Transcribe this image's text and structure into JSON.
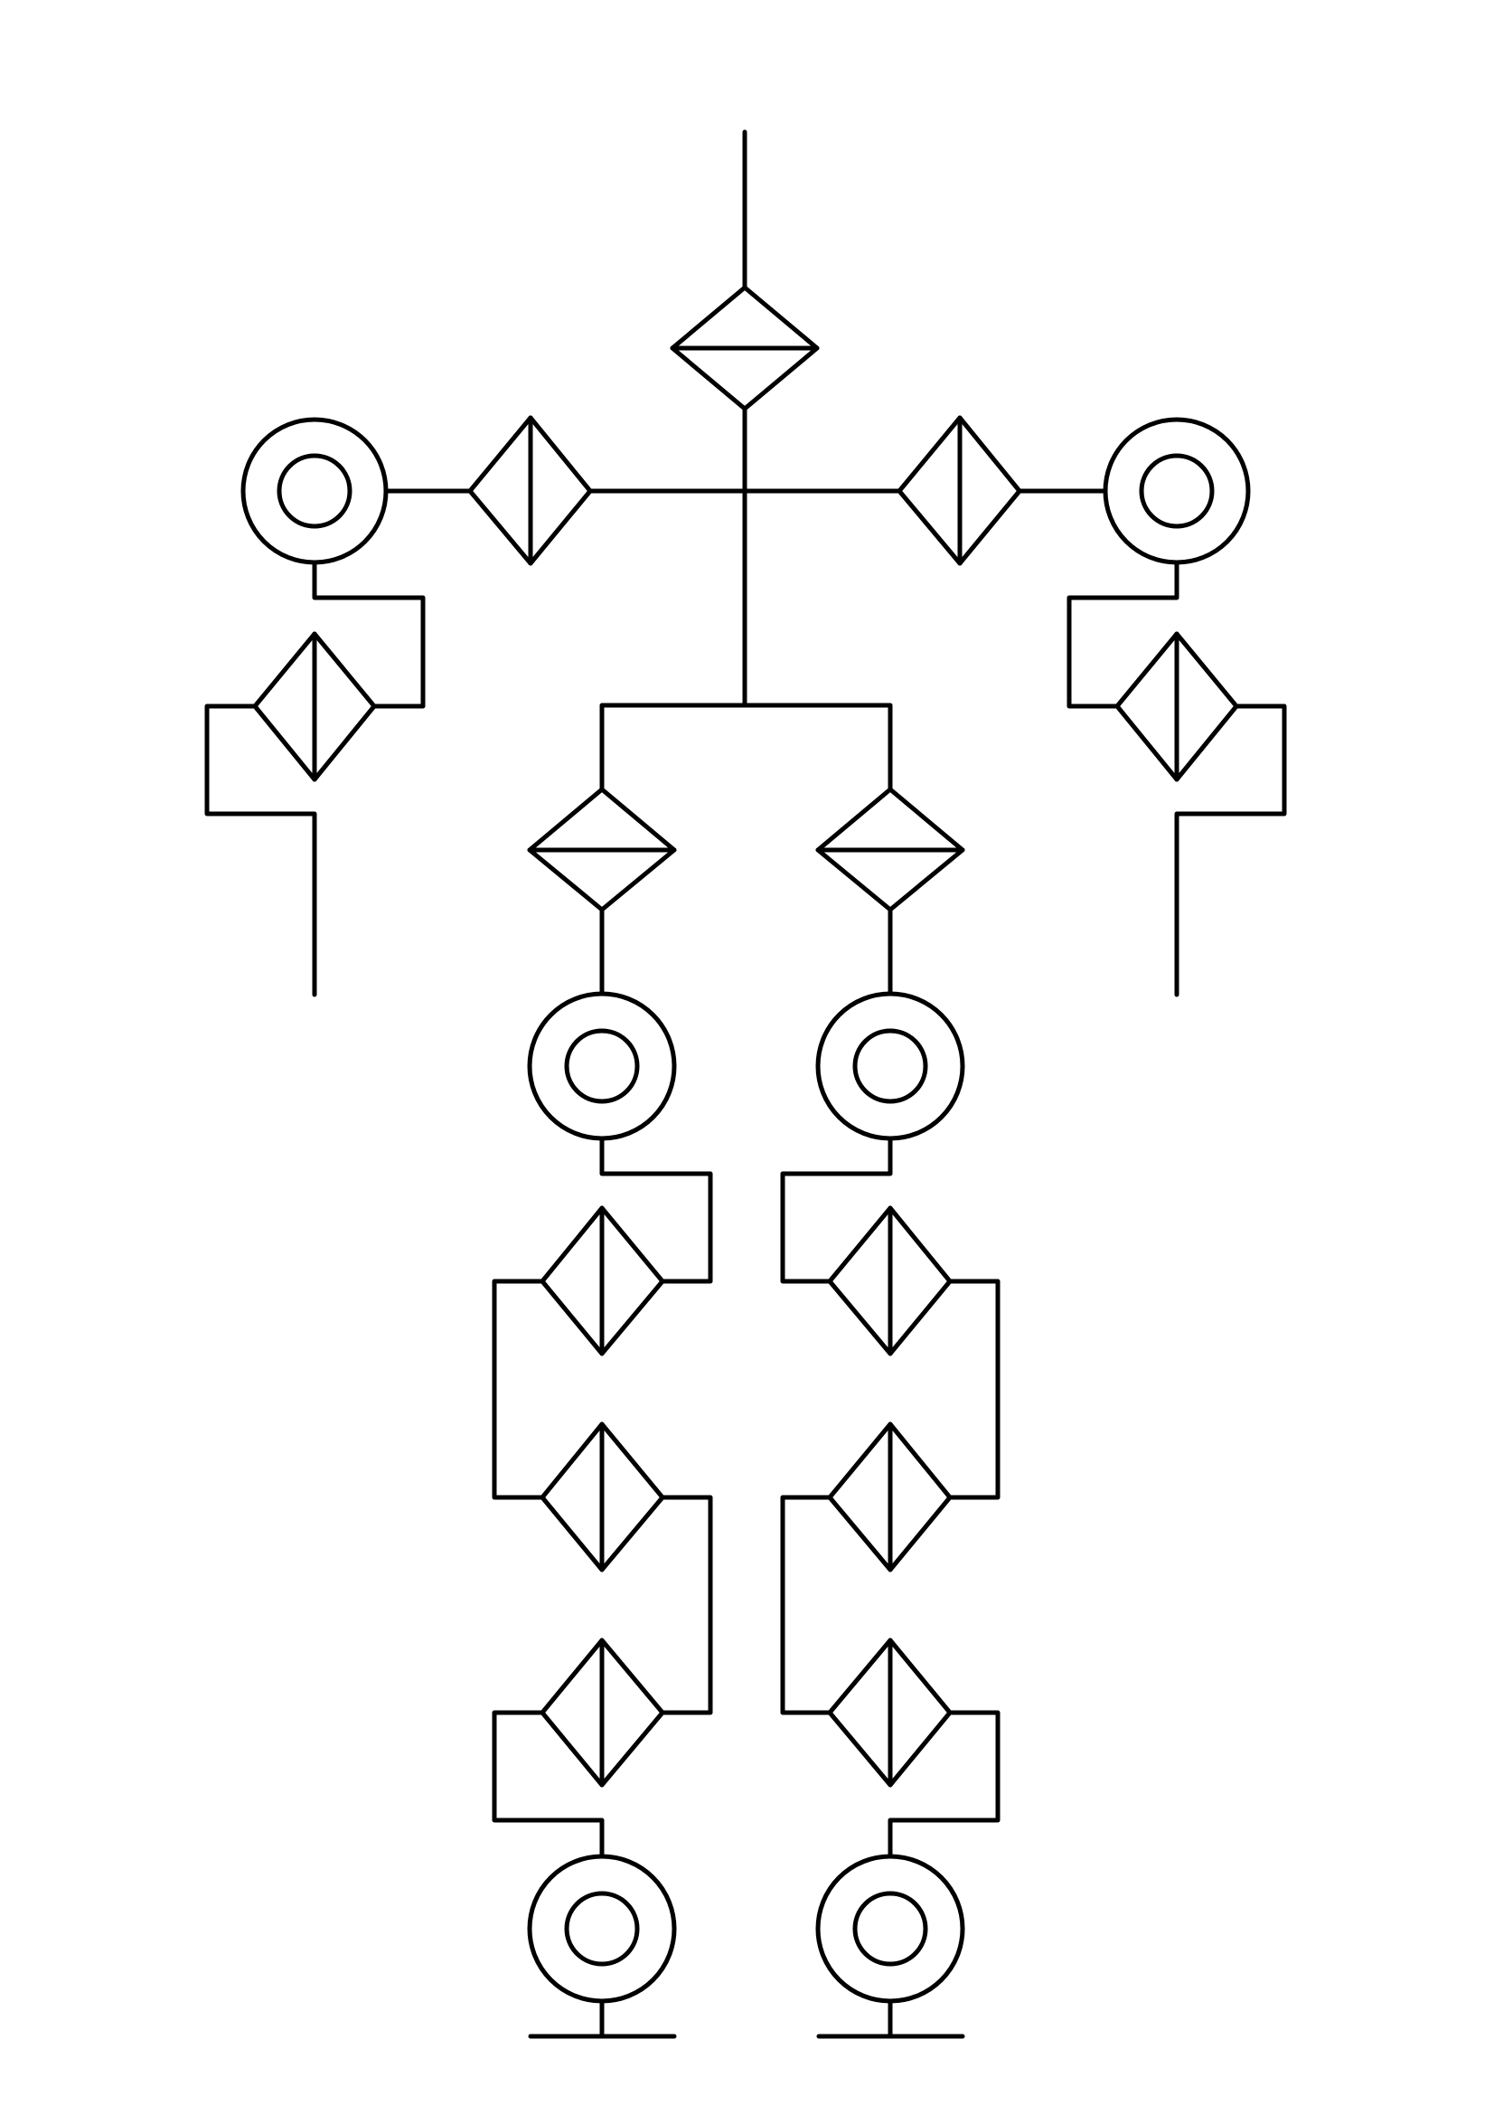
{
  "diagram": {
    "kind": "skeleton-like schematic of joint symbols (diamonds) and link symbols (double circles)",
    "colors": {
      "stroke": "#000000",
      "background": "#ffffff"
    },
    "symbols": {
      "double_circle_count": 6,
      "diamond_horizontal_bar_count": 3,
      "diamond_vertical_bar_count": 10
    }
  }
}
